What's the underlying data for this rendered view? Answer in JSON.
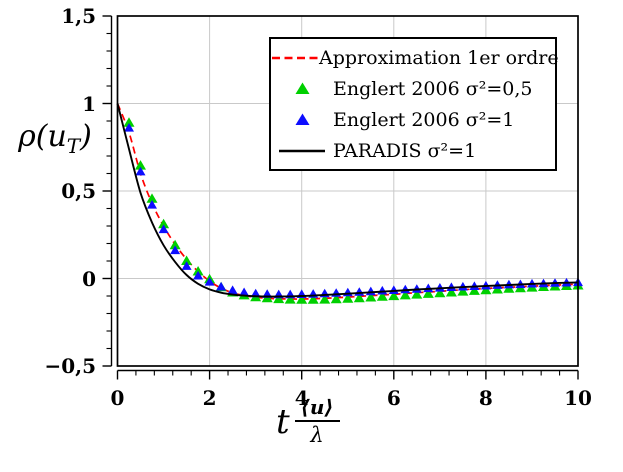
{
  "figure": {
    "background": "#ffffff",
    "title": ""
  },
  "labels": {
    "y_pre": "ρ(u",
    "y_sub": "T",
    "y_post": ")",
    "x_lead": "t",
    "x_num": "⟨u⟩",
    "x_den": "λ"
  },
  "colors": {
    "grid": "#c9c9c9",
    "axis": "#000000",
    "approximation": "#ff0000",
    "englert_05": "#00d000",
    "englert_1": "#0d0dff",
    "paradis": "#000000"
  },
  "legend": {
    "items": [
      {
        "label": "Approximation 1er ordre",
        "symbol": "dashed-line",
        "color": "#ff0000"
      },
      {
        "label": "Englert 2006 σ²=0,5",
        "symbol": "triangle",
        "color": "#00d000"
      },
      {
        "label": "Englert 2006 σ²=1",
        "symbol": "triangle",
        "color": "#0d0dff"
      },
      {
        "label": "PARADIS σ²=1",
        "symbol": "solid-line",
        "color": "#000000"
      }
    ]
  },
  "chart_data": {
    "type": "line",
    "xlabel": "t⟨u⟩/λ",
    "ylabel": "ρ(u_T)",
    "xlim": [
      0,
      10
    ],
    "ylim": [
      -0.5,
      1.5
    ],
    "grid": "major-on",
    "legend_position": "upper right",
    "axes": {
      "x": {
        "major": [
          0,
          2,
          4,
          6,
          8,
          10
        ],
        "labels": [
          "0",
          "2",
          "4",
          "6",
          "8",
          "10"
        ],
        "minor_step": 0.4,
        "gridlines": [
          2,
          4,
          6,
          8
        ]
      },
      "y": {
        "major": [
          -0.5,
          0,
          0.5,
          1,
          1.5
        ],
        "labels": [
          "−0,5",
          "0",
          "0,5",
          "1",
          "1,5"
        ],
        "minor_step": 0.1,
        "gridlines": [
          0,
          0.5,
          1
        ]
      }
    },
    "series": [
      {
        "name": "Approximation 1er ordre",
        "kind": "line",
        "style": "dashed",
        "color": "#ff0000",
        "width": 1.7,
        "x": [
          0,
          0.25,
          0.5,
          0.75,
          1,
          1.25,
          1.5,
          1.75,
          2,
          2.25,
          2.5,
          2.75,
          3,
          3.25,
          3.5,
          3.75,
          4,
          4.5,
          5,
          5.5,
          6,
          6.5,
          7,
          7.5,
          8,
          8.5,
          9,
          9.5,
          10
        ],
        "y": [
          1.0,
          0.835,
          0.6,
          0.43,
          0.3,
          0.195,
          0.11,
          0.04,
          -0.015,
          -0.055,
          -0.082,
          -0.098,
          -0.107,
          -0.113,
          -0.116,
          -0.117,
          -0.117,
          -0.113,
          -0.106,
          -0.098,
          -0.09,
          -0.081,
          -0.073,
          -0.064,
          -0.057,
          -0.05,
          -0.044,
          -0.038,
          -0.033
        ]
      },
      {
        "name": "Englert 2006 σ²=0,5",
        "kind": "scatter",
        "marker": "triangle",
        "color": "#00d000",
        "size": 5.5,
        "x": [
          0.25,
          0.5,
          0.75,
          1,
          1.25,
          1.5,
          1.75,
          2,
          2.25,
          2.5,
          2.75,
          3,
          3.25,
          3.5,
          3.75,
          4,
          4.25,
          4.5,
          4.75,
          5,
          5.25,
          5.5,
          5.75,
          6,
          6.25,
          6.5,
          6.75,
          7,
          7.25,
          7.5,
          7.75,
          8,
          8.25,
          8.5,
          8.75,
          9,
          9.25,
          9.5,
          9.75,
          10
        ],
        "y": [
          0.89,
          0.645,
          0.455,
          0.31,
          0.19,
          0.1,
          0.04,
          -0.005,
          -0.05,
          -0.08,
          -0.097,
          -0.107,
          -0.113,
          -0.118,
          -0.121,
          -0.122,
          -0.122,
          -0.121,
          -0.119,
          -0.116,
          -0.113,
          -0.109,
          -0.105,
          -0.101,
          -0.097,
          -0.092,
          -0.088,
          -0.084,
          -0.08,
          -0.075,
          -0.071,
          -0.067,
          -0.063,
          -0.059,
          -0.056,
          -0.052,
          -0.049,
          -0.046,
          -0.043,
          -0.04
        ]
      },
      {
        "name": "Englert 2006 σ²=1",
        "kind": "scatter",
        "marker": "triangle",
        "color": "#0d0dff",
        "size": 5,
        "x": [
          0.25,
          0.5,
          0.75,
          1,
          1.25,
          1.5,
          1.75,
          2,
          2.25,
          2.5,
          2.75,
          3,
          3.25,
          3.5,
          3.75,
          4,
          4.25,
          4.5,
          4.75,
          5,
          5.25,
          5.5,
          5.75,
          6,
          6.25,
          6.5,
          6.75,
          7,
          7.25,
          7.5,
          7.75,
          8,
          8.25,
          8.5,
          8.75,
          9,
          9.25,
          9.5,
          9.75,
          10
        ],
        "y": [
          0.86,
          0.61,
          0.42,
          0.28,
          0.16,
          0.07,
          0.015,
          -0.02,
          -0.048,
          -0.068,
          -0.08,
          -0.087,
          -0.09,
          -0.092,
          -0.092,
          -0.091,
          -0.089,
          -0.087,
          -0.084,
          -0.081,
          -0.078,
          -0.075,
          -0.071,
          -0.068,
          -0.064,
          -0.061,
          -0.057,
          -0.054,
          -0.051,
          -0.048,
          -0.045,
          -0.042,
          -0.039,
          -0.036,
          -0.034,
          -0.031,
          -0.029,
          -0.027,
          -0.025,
          -0.023
        ]
      },
      {
        "name": "PARADIS σ²=1",
        "kind": "line",
        "style": "solid",
        "color": "#000000",
        "width": 1.9,
        "x": [
          0,
          0.25,
          0.5,
          0.75,
          1,
          1.25,
          1.5,
          1.75,
          2,
          2.25,
          2.5,
          2.75,
          3,
          3.25,
          3.5,
          3.75,
          4,
          4.5,
          5,
          5.5,
          6,
          6.5,
          7,
          7.5,
          8,
          8.5,
          9,
          9.5,
          10
        ],
        "y": [
          1.0,
          0.74,
          0.49,
          0.32,
          0.19,
          0.095,
          0.02,
          -0.03,
          -0.062,
          -0.081,
          -0.092,
          -0.098,
          -0.101,
          -0.103,
          -0.103,
          -0.102,
          -0.1,
          -0.094,
          -0.087,
          -0.079,
          -0.071,
          -0.063,
          -0.056,
          -0.049,
          -0.043,
          -0.037,
          -0.031,
          -0.026,
          -0.022
        ]
      }
    ]
  }
}
